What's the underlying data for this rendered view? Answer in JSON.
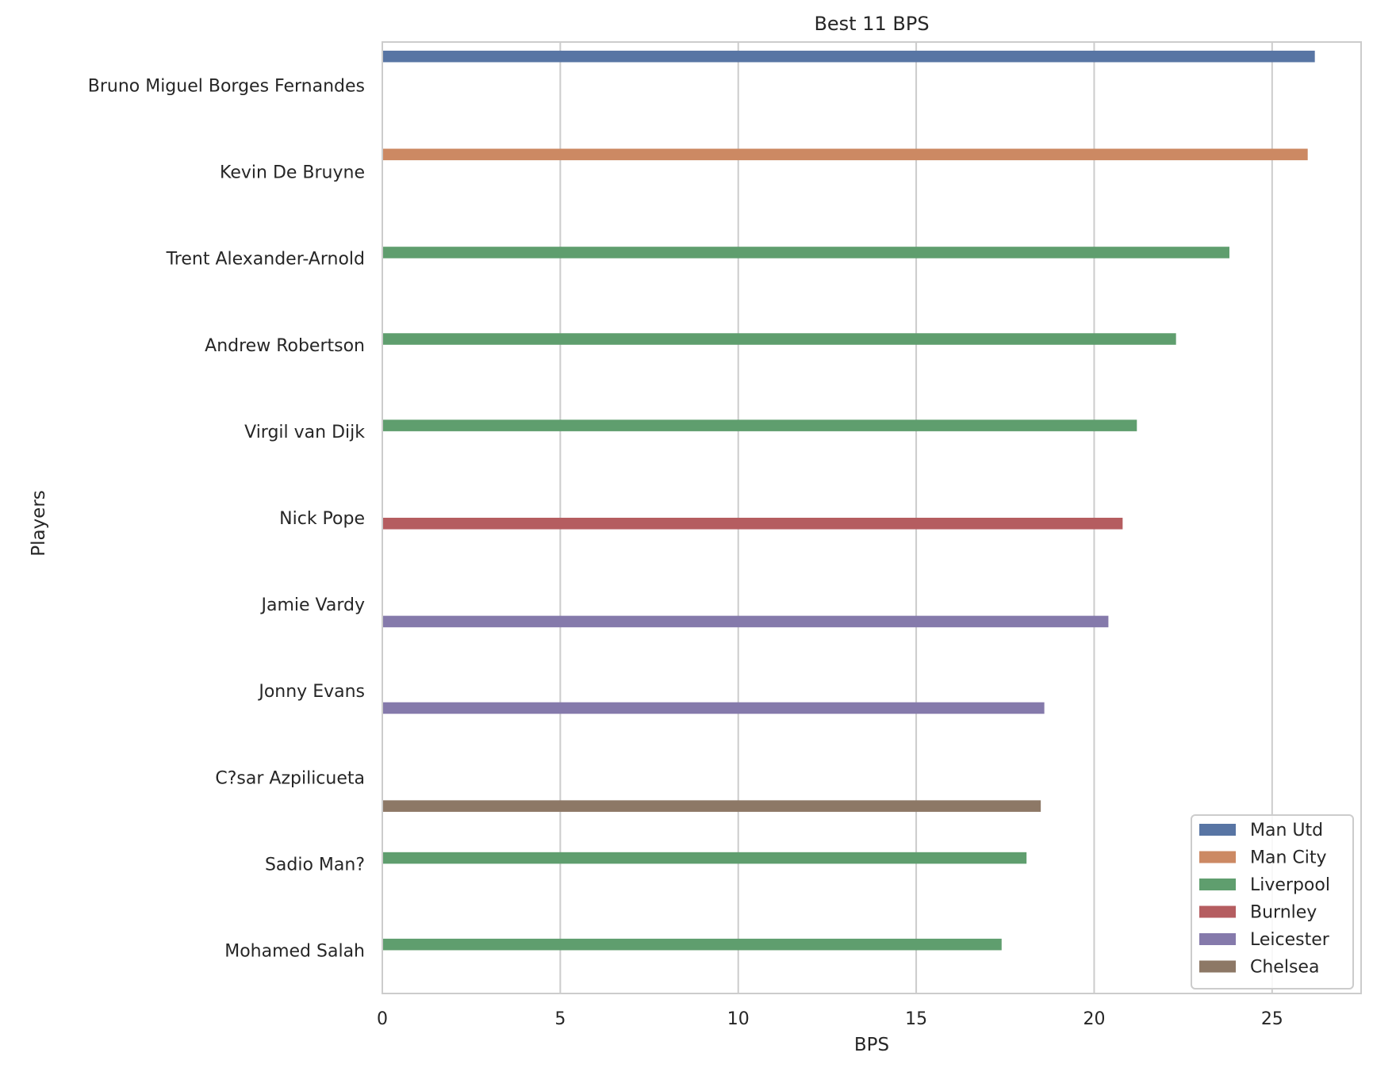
{
  "chart_data": {
    "type": "bar",
    "orientation": "horizontal",
    "title": "Best 11 BPS",
    "xlabel": "BPS",
    "ylabel": "Players",
    "xlim": [
      0,
      27.5
    ],
    "xticks": [
      0,
      5,
      10,
      15,
      20,
      25
    ],
    "grid": true,
    "legend_position": "bottom-right",
    "categories": [
      "Bruno Miguel Borges Fernandes",
      "Kevin De Bruyne",
      "Trent Alexander-Arnold",
      "Andrew Robertson",
      "Virgil van Dijk",
      "Nick Pope",
      "Jamie Vardy",
      "Jonny Evans",
      "C?sar Azpilicueta",
      "Sadio Man?",
      "Mohamed Salah"
    ],
    "series": [
      {
        "name": "Man Utd",
        "color": "#5875a4",
        "values": [
          26.2,
          null,
          null,
          null,
          null,
          null,
          null,
          null,
          null,
          null,
          null
        ]
      },
      {
        "name": "Man City",
        "color": "#cc8963",
        "values": [
          null,
          26.0,
          null,
          null,
          null,
          null,
          null,
          null,
          null,
          null,
          null
        ]
      },
      {
        "name": "Liverpool",
        "color": "#5f9e6e",
        "values": [
          null,
          null,
          23.8,
          22.3,
          21.2,
          null,
          null,
          null,
          null,
          18.1,
          17.4
        ]
      },
      {
        "name": "Burnley",
        "color": "#b55d60",
        "values": [
          null,
          null,
          null,
          null,
          null,
          20.8,
          null,
          null,
          null,
          null,
          null
        ]
      },
      {
        "name": "Leicester",
        "color": "#857aab",
        "values": [
          null,
          null,
          null,
          null,
          null,
          null,
          20.4,
          18.6,
          null,
          null,
          null
        ]
      },
      {
        "name": "Chelsea",
        "color": "#8d7866",
        "values": [
          null,
          null,
          null,
          null,
          null,
          null,
          null,
          null,
          18.5,
          null,
          null
        ]
      }
    ]
  }
}
